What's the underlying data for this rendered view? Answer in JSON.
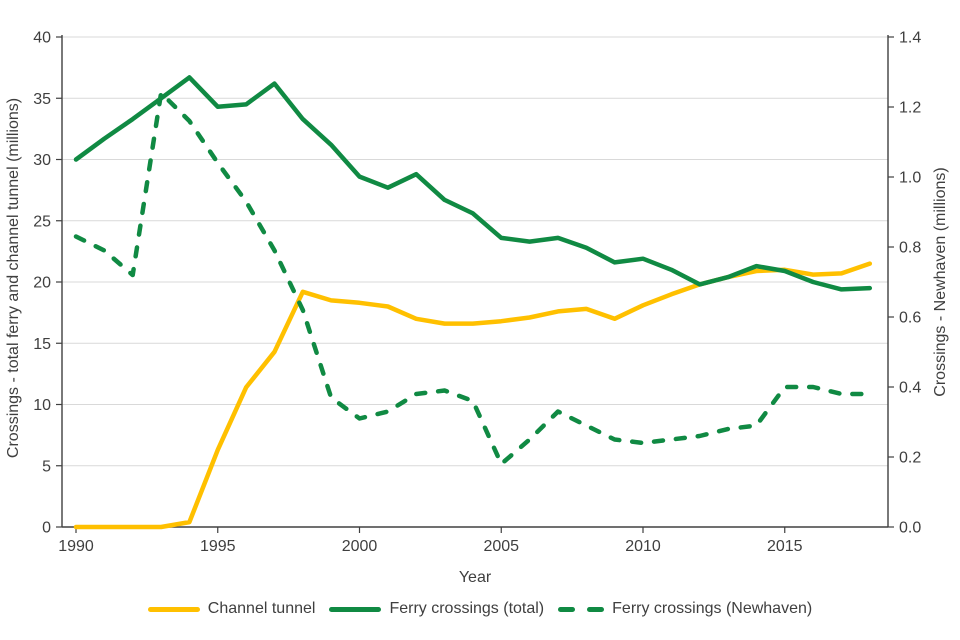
{
  "chart_data": {
    "type": "line",
    "xlabel": "Year",
    "ylabel_left": "Crossings - total ferry and channel tunnel (millions)",
    "ylabel_right": "Crossings - Newhaven (millions)",
    "ylim_left": [
      0,
      40
    ],
    "ylim_right": [
      0,
      1.4
    ],
    "yticks_left": [
      0,
      5,
      10,
      15,
      20,
      25,
      30,
      35,
      40
    ],
    "yticks_right": [
      0.0,
      0.2,
      0.4,
      0.6,
      0.8,
      1.0,
      1.2,
      1.4
    ],
    "xticks": [
      1990,
      1995,
      2000,
      2005,
      2010,
      2015
    ],
    "grid": true,
    "legend_position": "bottom",
    "x": [
      1990,
      1991,
      1992,
      1993,
      1994,
      1995,
      1996,
      1997,
      1998,
      1999,
      2000,
      2001,
      2002,
      2003,
      2004,
      2005,
      2006,
      2007,
      2008,
      2009,
      2010,
      2011,
      2012,
      2013,
      2014,
      2015,
      2016,
      2017,
      2018
    ],
    "series": [
      {
        "name": "Channel tunnel",
        "axis": "left",
        "style": "solid",
        "color": "#FFC000",
        "values": [
          0,
          0,
          0,
          0,
          0.4,
          6.3,
          11.4,
          14.3,
          19.2,
          18.5,
          18.3,
          18.0,
          17.0,
          16.6,
          16.6,
          16.8,
          17.1,
          17.6,
          17.8,
          17.0,
          18.1,
          19.0,
          19.8,
          20.4,
          20.9,
          21.0,
          20.6,
          20.7,
          21.5
        ]
      },
      {
        "name": "Ferry crossings (total)",
        "axis": "left",
        "style": "solid",
        "color": "#108A43",
        "values": [
          30.0,
          31.7,
          33.3,
          35.0,
          36.7,
          34.3,
          34.5,
          36.2,
          33.3,
          31.2,
          28.6,
          27.7,
          28.8,
          26.7,
          25.6,
          23.6,
          23.3,
          23.6,
          22.8,
          21.6,
          21.9,
          21.0,
          19.8,
          20.4,
          21.3,
          20.9,
          20.0,
          19.4,
          19.5
        ]
      },
      {
        "name": "Ferry crossings (Newhaven)",
        "axis": "right",
        "style": "dashed",
        "color": "#108A43",
        "values": [
          0.83,
          0.79,
          0.72,
          1.24,
          1.16,
          1.04,
          0.93,
          0.79,
          0.62,
          0.37,
          0.31,
          0.33,
          0.38,
          0.39,
          0.36,
          0.18,
          0.25,
          0.33,
          0.29,
          0.25,
          0.24,
          0.25,
          0.26,
          0.28,
          0.29,
          0.4,
          0.4,
          0.38,
          0.38
        ]
      }
    ]
  },
  "colors": {
    "grid": "#D9D9D9",
    "axis": "#404040",
    "text": "#3F3F3F",
    "background": "#FFFFFF"
  }
}
